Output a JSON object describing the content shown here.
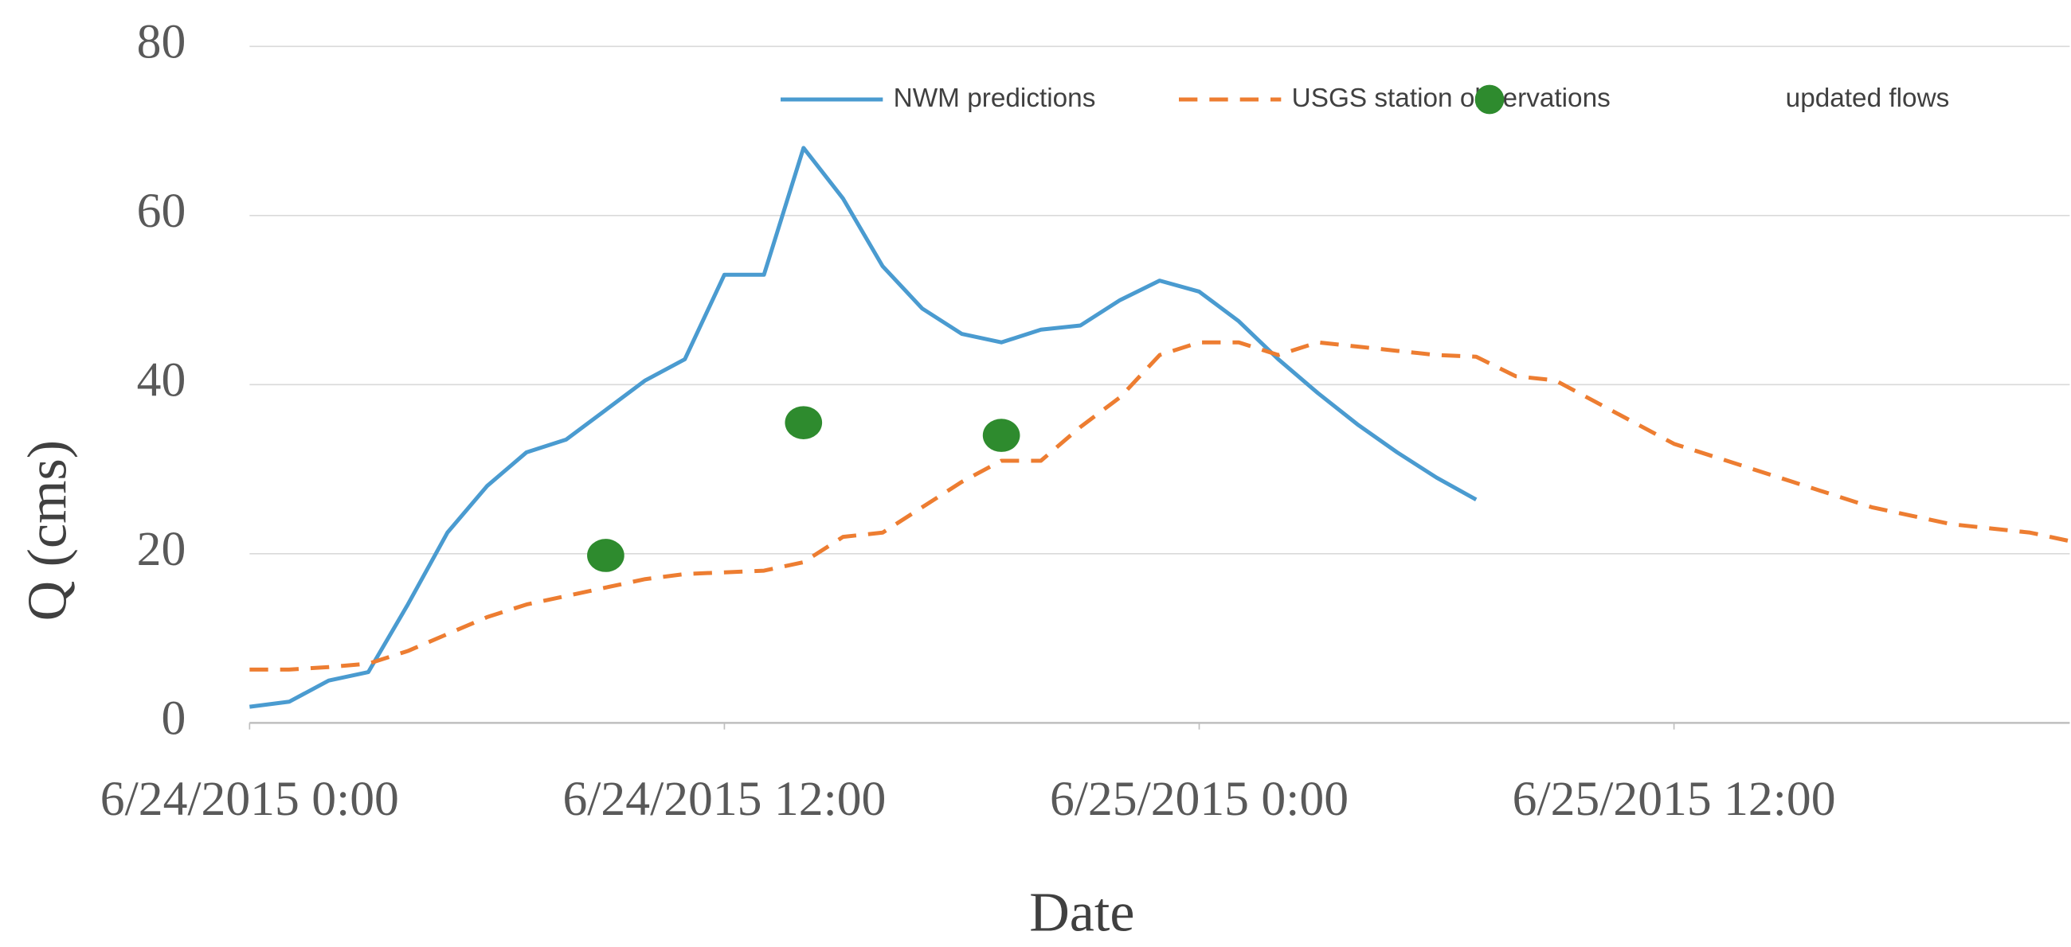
{
  "chart_data": {
    "type": "line",
    "x_label": "Date",
    "y_label": "Q (cms)",
    "x": [
      "6/24/2015 0:00",
      "6/24/2015 1:00",
      "6/24/2015 2:00",
      "6/24/2015 3:00",
      "6/24/2015 4:00",
      "6/24/2015 5:00",
      "6/24/2015 6:00",
      "6/24/2015 7:00",
      "6/24/2015 8:00",
      "6/24/2015 9:00",
      "6/24/2015 10:00",
      "6/24/2015 11:00",
      "6/24/2015 12:00",
      "6/24/2015 13:00",
      "6/24/2015 14:00",
      "6/24/2015 15:00",
      "6/24/2015 16:00",
      "6/24/2015 17:00",
      "6/24/2015 18:00",
      "6/24/2015 19:00",
      "6/24/2015 20:00",
      "6/24/2015 21:00",
      "6/24/2015 22:00",
      "6/24/2015 23:00",
      "6/25/2015 0:00",
      "6/25/2015 1:00",
      "6/25/2015 2:00",
      "6/25/2015 3:00",
      "6/25/2015 4:00",
      "6/25/2015 5:00",
      "6/25/2015 6:00",
      "6/25/2015 7:00",
      "6/25/2015 8:00",
      "6/25/2015 9:00",
      "6/25/2015 10:00",
      "6/25/2015 11:00",
      "6/25/2015 12:00",
      "6/25/2015 13:00",
      "6/25/2015 14:00",
      "6/25/2015 15:00",
      "6/25/2015 16:00",
      "6/25/2015 17:00",
      "6/25/2015 18:00",
      "6/25/2015 19:00",
      "6/25/2015 20:00",
      "6/25/2015 21:00",
      "6/25/2015 22:00"
    ],
    "series": [
      {
        "name": "NWM predictions",
        "color": "#4a9bd0",
        "mode": "line",
        "dash": false,
        "values": [
          1.9,
          2.5,
          5,
          6,
          14,
          22.5,
          28,
          32,
          33.5,
          37,
          40.5,
          43,
          53,
          53,
          68,
          62,
          54,
          49,
          46,
          45,
          46.5,
          47,
          50,
          52.3,
          51,
          47.5,
          43,
          39,
          35.3,
          32,
          29,
          26.4,
          null,
          null,
          null,
          null,
          null,
          null,
          null,
          null,
          null,
          null,
          null,
          null,
          null,
          null,
          null
        ]
      },
      {
        "name": "USGS station observations",
        "color": "#ed7d31",
        "mode": "line",
        "dash": true,
        "values": [
          6.3,
          6.3,
          6.6,
          7,
          8.5,
          10.5,
          12.5,
          14,
          15,
          16,
          17,
          17.6,
          17.8,
          18,
          19,
          22,
          22.5,
          25.5,
          28.5,
          31,
          31,
          35,
          38.5,
          43.5,
          45,
          45,
          43.5,
          45,
          44.5,
          44,
          43.5,
          43.3,
          41,
          40.5,
          38,
          35.5,
          33,
          31.5,
          30,
          28.5,
          27,
          25.5,
          24.5,
          23.5,
          23,
          22.5,
          21.5
        ]
      },
      {
        "name": "updated flows",
        "color": "#2e8b2e",
        "mode": "markers",
        "dash": false,
        "values": [
          null,
          null,
          null,
          null,
          null,
          null,
          null,
          null,
          null,
          19.8,
          null,
          null,
          null,
          null,
          35.5,
          null,
          null,
          null,
          null,
          34,
          null,
          null,
          null,
          null,
          null,
          null,
          null,
          null,
          null,
          null,
          null,
          null,
          null,
          null,
          null,
          null,
          null,
          null,
          null,
          null,
          null,
          null,
          null,
          null,
          null,
          null,
          null
        ]
      }
    ],
    "xlim": [
      "6/24/2015 0:00",
      "6/25/2015 22:00"
    ],
    "xticks": [
      "6/24/2015 0:00",
      "6/24/2015 12:00",
      "6/25/2015 0:00",
      "6/25/2015 12:00"
    ],
    "ylim": [
      0,
      80
    ],
    "yticks": [
      0,
      20,
      40,
      60,
      80
    ],
    "grid": true,
    "legend": "upper right"
  }
}
